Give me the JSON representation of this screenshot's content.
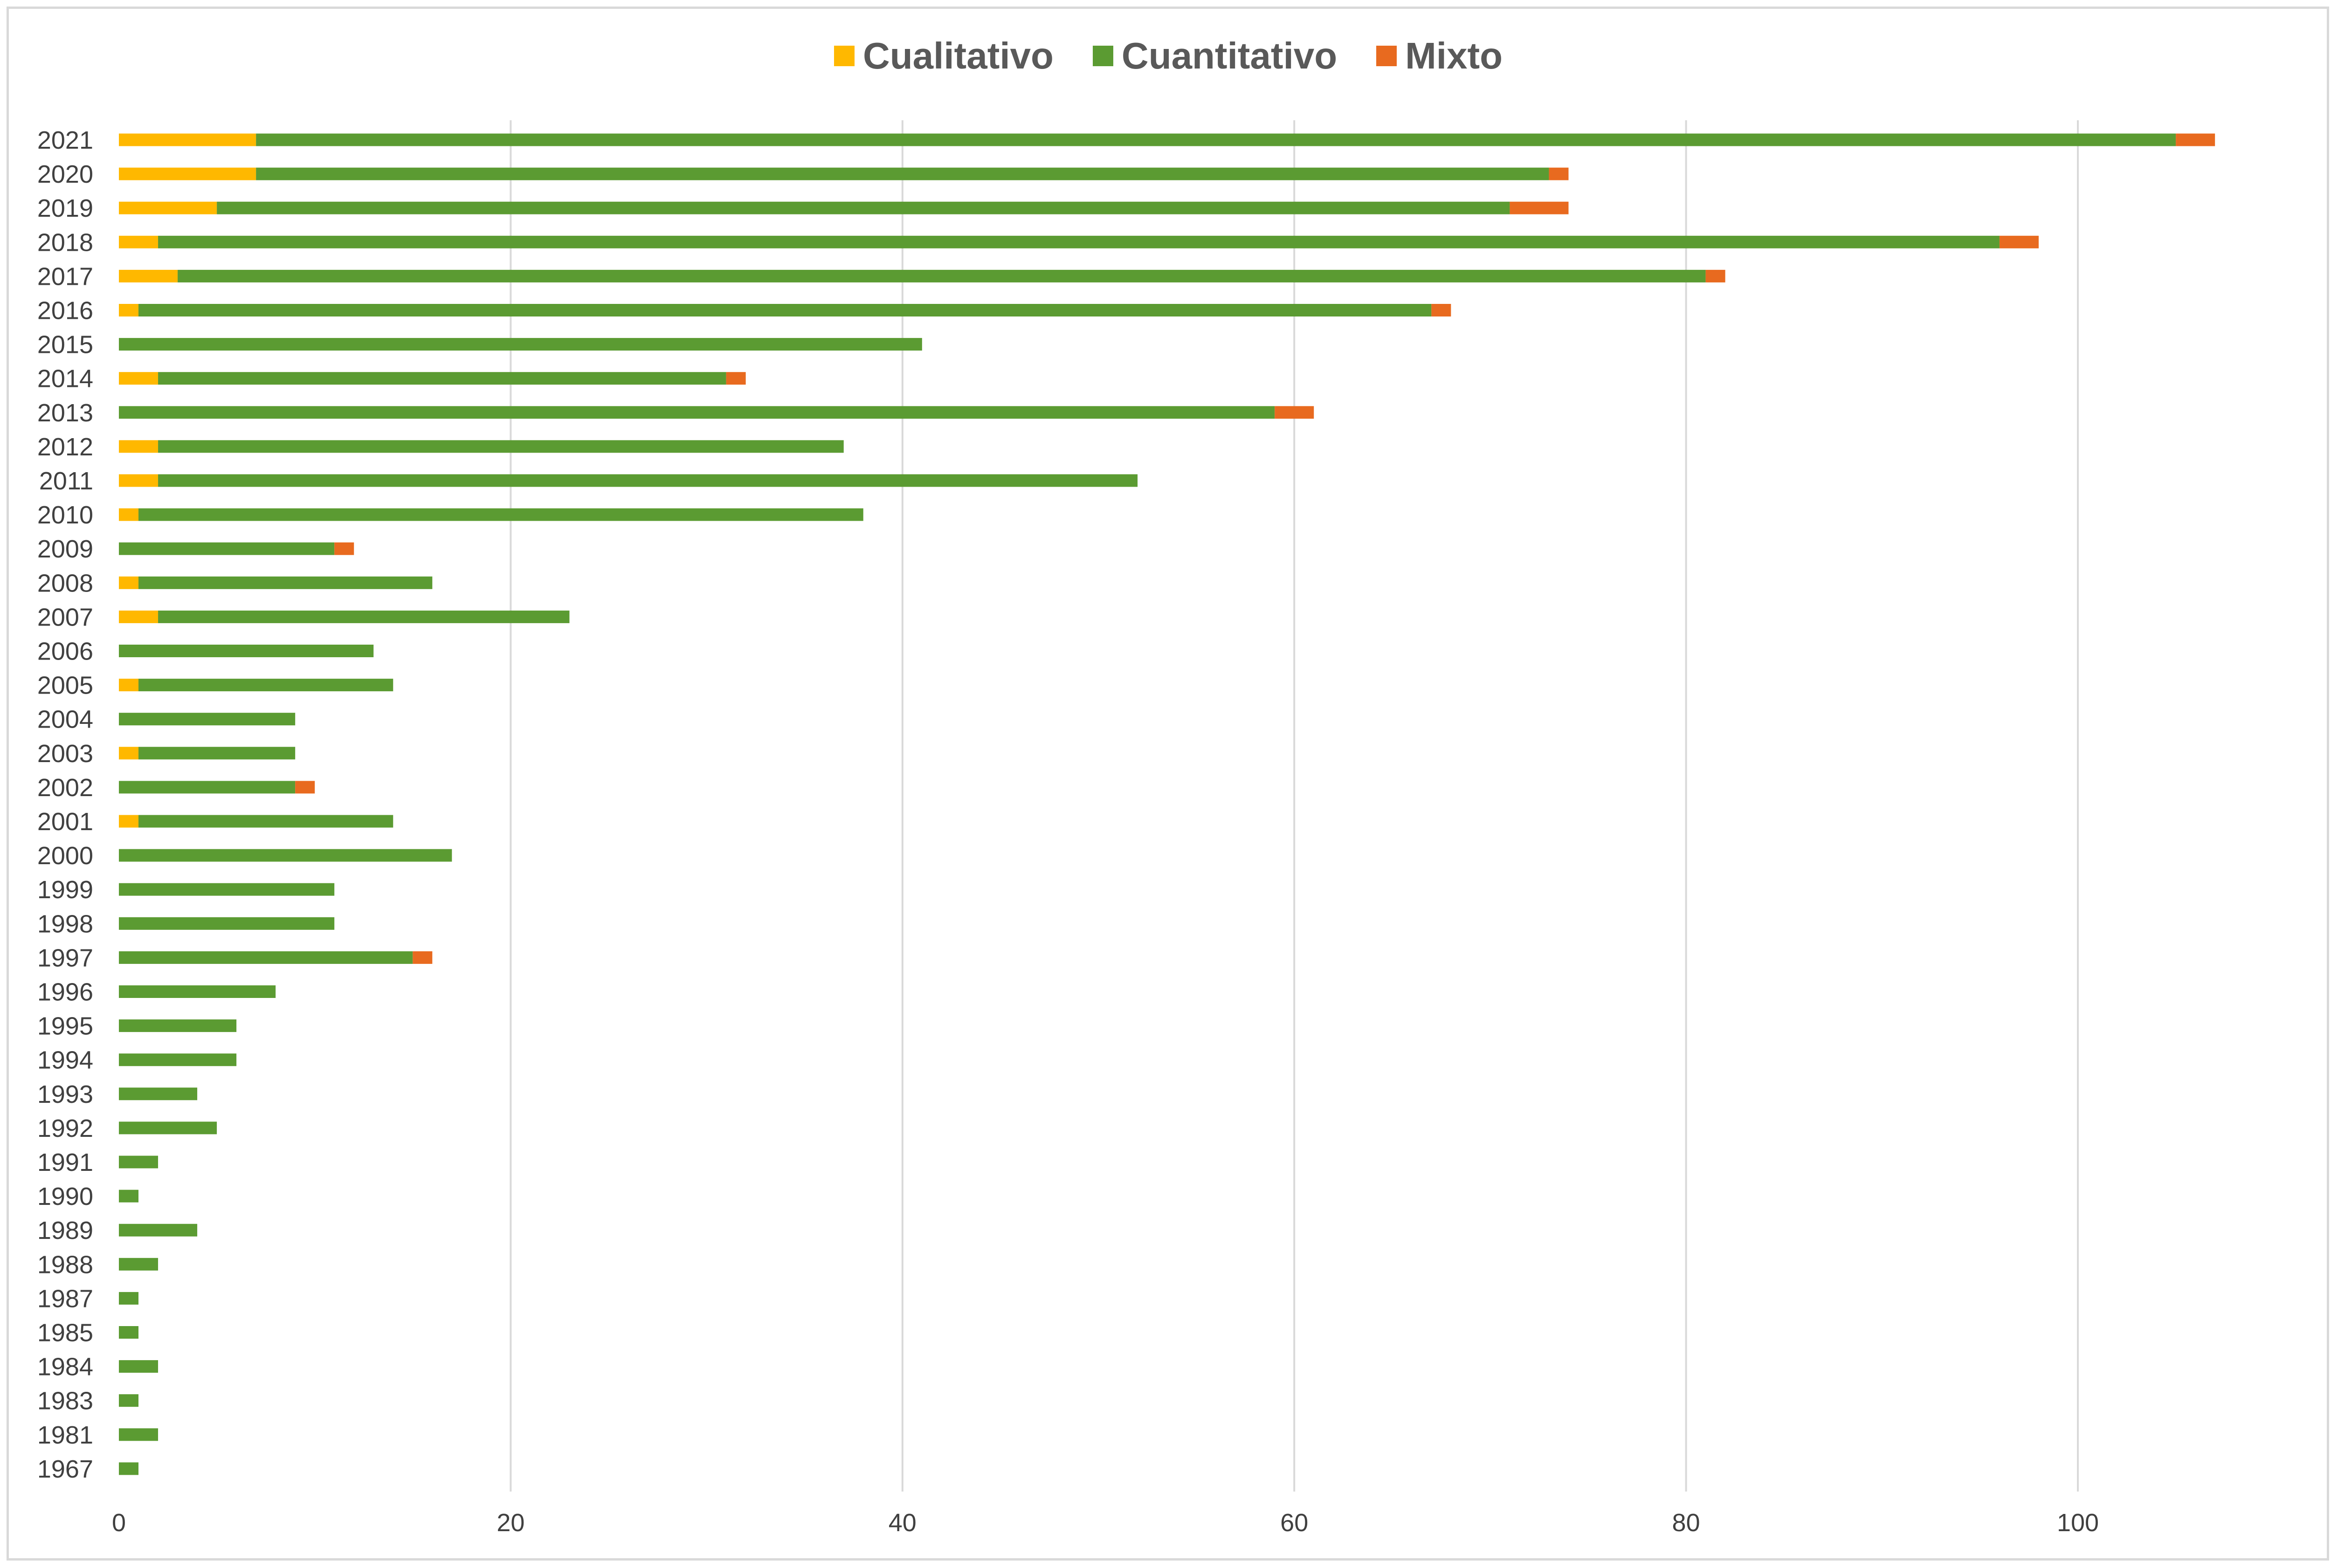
{
  "chart_data": {
    "type": "bar",
    "orientation": "horizontal",
    "stacked": true,
    "title": "",
    "xlabel": "",
    "ylabel": "",
    "xlim": [
      0,
      110
    ],
    "x_ticks": [
      0,
      20,
      40,
      60,
      80,
      100
    ],
    "grid": true,
    "legend_position": "top",
    "categories": [
      "2021",
      "2020",
      "2019",
      "2018",
      "2017",
      "2016",
      "2015",
      "2014",
      "2013",
      "2012",
      "2011",
      "2010",
      "2009",
      "2008",
      "2007",
      "2006",
      "2005",
      "2004",
      "2003",
      "2002",
      "2001",
      "2000",
      "1999",
      "1998",
      "1997",
      "1996",
      "1995",
      "1994",
      "1993",
      "1992",
      "1991",
      "1990",
      "1989",
      "1988",
      "1987",
      "1985",
      "1984",
      "1983",
      "1981",
      "1967"
    ],
    "series": [
      {
        "name": "Cualitativo",
        "color": "#FFB800",
        "values": [
          7,
          7,
          5,
          2,
          3,
          1,
          0,
          2,
          0,
          2,
          2,
          1,
          0,
          1,
          2,
          0,
          1,
          0,
          1,
          0,
          1,
          0,
          0,
          0,
          0,
          0,
          0,
          0,
          0,
          0,
          0,
          0,
          0,
          0,
          0,
          0,
          0,
          0,
          0,
          0
        ]
      },
      {
        "name": "Cuantitativo",
        "color": "#5B9B32",
        "values": [
          98,
          66,
          66,
          94,
          78,
          66,
          41,
          29,
          59,
          35,
          50,
          37,
          11,
          15,
          21,
          13,
          13,
          9,
          8,
          9,
          13,
          17,
          11,
          11,
          15,
          8,
          6,
          6,
          4,
          5,
          2,
          1,
          4,
          2,
          1,
          1,
          2,
          1,
          2,
          1
        ]
      },
      {
        "name": "Mixto",
        "color": "#E86A1F",
        "values": [
          2,
          1,
          3,
          2,
          1,
          1,
          0,
          1,
          2,
          0,
          0,
          0,
          1,
          0,
          0,
          0,
          0,
          0,
          0,
          1,
          0,
          0,
          0,
          0,
          1,
          0,
          0,
          0,
          0,
          0,
          0,
          0,
          0,
          0,
          0,
          0,
          0,
          0,
          0,
          0
        ]
      }
    ]
  }
}
